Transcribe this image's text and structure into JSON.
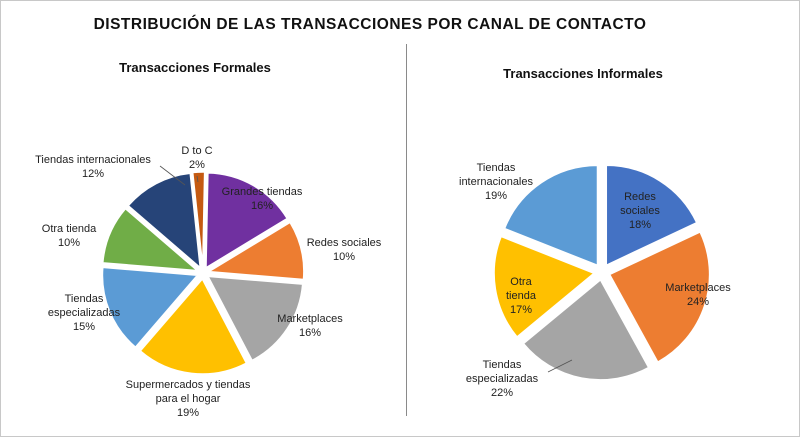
{
  "title": "DISTRIBUCIÓN DE LAS TRANSACCIONES POR CANAL DE CONTACTO",
  "chart_data": [
    {
      "type": "pie",
      "title": "Transacciones Formales",
      "slices": [
        {
          "label": "Grandes tiendas",
          "value": 16,
          "value_label": "16%",
          "color": "#7030a0"
        },
        {
          "label": "Redes sociales",
          "value": 10,
          "value_label": "10%",
          "color": "#ed7d31"
        },
        {
          "label": "Marketplaces",
          "value": 16,
          "value_label": "16%",
          "color": "#a5a5a5"
        },
        {
          "label": "Supermercados y tiendas para el hogar",
          "value": 19,
          "value_label": "19%",
          "color": "#ffc000"
        },
        {
          "label": "Tiendas especializadas",
          "value": 15,
          "value_label": "15%",
          "color": "#5b9bd5"
        },
        {
          "label": "Otra tienda",
          "value": 10,
          "value_label": "10%",
          "color": "#70ad47"
        },
        {
          "label": "Tiendas internacionales",
          "value": 12,
          "value_label": "12%",
          "color": "#264478"
        },
        {
          "label": "D to C",
          "value": 2,
          "value_label": "2%",
          "color": "#c55a11"
        }
      ]
    },
    {
      "type": "pie",
      "title": "Transacciones Informales",
      "slices": [
        {
          "label": "Redes sociales",
          "value": 18,
          "value_label": "18%",
          "color": "#4472c4"
        },
        {
          "label": "Marketplaces",
          "value": 24,
          "value_label": "24%",
          "color": "#ed7d31"
        },
        {
          "label": "Tiendas especializadas",
          "value": 22,
          "value_label": "22%",
          "color": "#a5a5a5"
        },
        {
          "label": "Otra tienda",
          "value": 17,
          "value_label": "17%",
          "color": "#ffc000"
        },
        {
          "label": "Tiendas internacionales",
          "value": 19,
          "value_label": "19%",
          "color": "#5b9bd5"
        }
      ]
    }
  ]
}
